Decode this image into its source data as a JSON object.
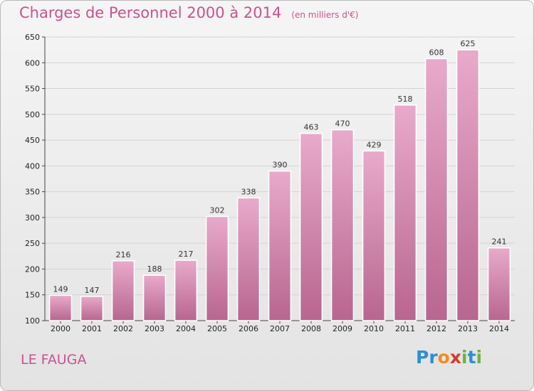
{
  "title": "Charges de Personnel 2000 à 2014",
  "subtitle": "(en milliers d'€)",
  "commune": "LE FAUGA",
  "logo": {
    "text": "Proxiti",
    "letters": [
      "P",
      "r",
      "o",
      "x",
      "i",
      "t",
      "i"
    ],
    "colors": [
      "#2b8fd6",
      "#2b8fd6",
      "#f28c1c",
      "#d63b2f",
      "#6cb33f",
      "#2b8fd6",
      "#6cb33f"
    ]
  },
  "chart_data": {
    "type": "bar",
    "title": "Charges de Personnel 2000 à 2014",
    "subtitle": "(en milliers d'€)",
    "xlabel": "",
    "ylabel": "",
    "categories": [
      "2000",
      "2001",
      "2002",
      "2003",
      "2004",
      "2005",
      "2006",
      "2007",
      "2008",
      "2009",
      "2010",
      "2011",
      "2012",
      "2013",
      "2014"
    ],
    "values": [
      149,
      147,
      216,
      188,
      217,
      302,
      338,
      390,
      463,
      470,
      429,
      518,
      608,
      625,
      241
    ],
    "ylim": [
      100,
      650
    ],
    "yticks": [
      100,
      150,
      200,
      250,
      300,
      350,
      400,
      450,
      500,
      550,
      600,
      650
    ],
    "grid": true,
    "bar_color": "#d6789f"
  }
}
